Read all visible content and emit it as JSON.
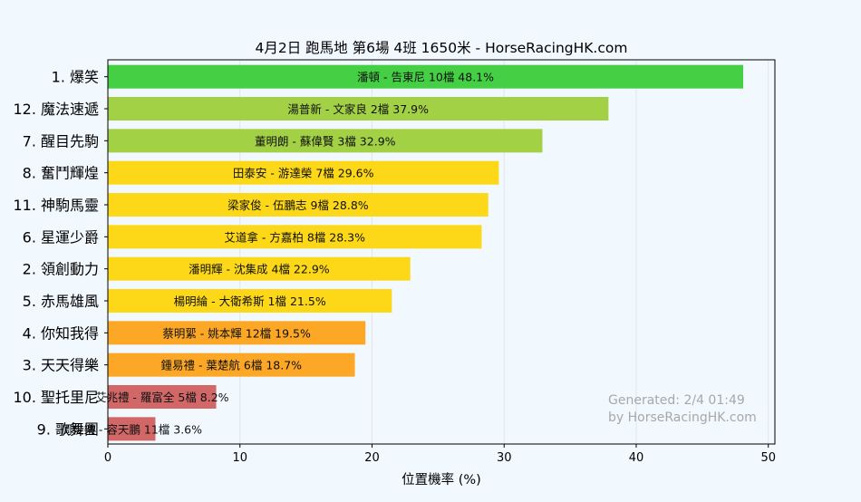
{
  "chart_data": {
    "type": "bar",
    "orientation": "horizontal",
    "title": "4月2日  跑馬地  第6場  4班  1650米 - HorseRacingHK.com",
    "xlabel": "位置機率 (%)",
    "ylabel": "",
    "xlim": [
      0,
      50.5
    ],
    "xticks": [
      0,
      10,
      20,
      30,
      40,
      50
    ],
    "grid": true,
    "categories": [
      "1. 爆笑",
      "12. 魔法速遞",
      "7. 醒目先駒",
      "8. 奮鬥輝煌",
      "11. 神駒馬靈",
      "6. 星運少爵",
      "2. 領創動力",
      "5. 赤馬雄風",
      "4. 你知我得",
      "3. 天天得樂",
      "10. 聖托里尼",
      "9. 歌舞團"
    ],
    "values": [
      48.1,
      37.9,
      32.9,
      29.6,
      28.8,
      28.3,
      22.9,
      21.5,
      19.5,
      18.7,
      8.2,
      3.6
    ],
    "bar_labels": [
      "潘頓 - 告東尼 10檔  48.1%",
      "湯普新 - 文家良 2檔  37.9%",
      "董明朗 - 蘇偉賢 3檔  32.9%",
      "田泰安 - 游達榮 7檔  29.6%",
      "梁家俊 - 伍鵬志 9檔  28.8%",
      "艾道拿 - 方嘉柏 8檔  28.3%",
      "潘明輝 - 沈集成 4檔  22.9%",
      "楊明綸 - 大衛希斯 1檔  21.5%",
      "蔡明綤 - 姚本輝 12檔  19.5%",
      "鍾易禮 - 葉楚航 6檔  18.7%",
      "艾兆禮 - 羅富全 5檔  8.2%",
      "周俊樂 - 容天鵬 11檔  3.6%"
    ],
    "colors": [
      "#45cf45",
      "#a2d146",
      "#a2d146",
      "#fdd818",
      "#fdd818",
      "#fdd818",
      "#fdd818",
      "#fdd818",
      "#fca725",
      "#fca725",
      "#d16767",
      "#d16767"
    ],
    "watermark": [
      "Generated: 2/4 01:49",
      "by HorseRacingHK.com"
    ]
  },
  "style": {
    "background": "#f1f8fe",
    "axes_face": "#f1f8fe",
    "grid_color": "#dfe6ec",
    "watermark_color": "#a8a8a8"
  }
}
